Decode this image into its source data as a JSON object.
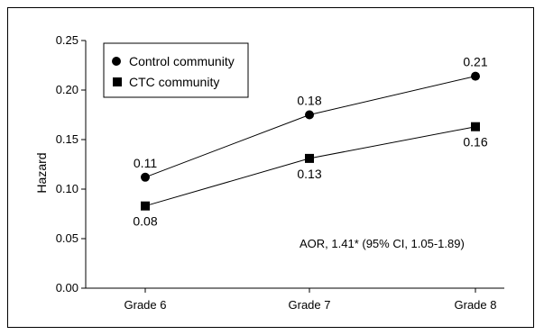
{
  "chart_data": {
    "type": "line",
    "categories": [
      "Grade 6",
      "Grade 7",
      "Grade 8"
    ],
    "series": [
      {
        "name": "Control community",
        "marker": "circle",
        "values": [
          0.112,
          0.175,
          0.214
        ],
        "labels": [
          "0.11",
          "0.18",
          "0.21"
        ]
      },
      {
        "name": "CTC community",
        "marker": "square",
        "values": [
          0.083,
          0.131,
          0.163
        ],
        "labels": [
          "0.08",
          "0.13",
          "0.16"
        ]
      }
    ],
    "ylabel": "Hazard",
    "xlabel": "",
    "ylim": [
      0.0,
      0.25
    ],
    "yticks": [
      0.0,
      0.05,
      0.1,
      0.15,
      0.2,
      0.25
    ],
    "ytick_labels": [
      "0.00",
      "0.05",
      "0.10",
      "0.15",
      "0.20",
      "0.25"
    ],
    "annotation": "AOR, 1.41* (95% CI, 1.05-1.89)",
    "legend_position": "top-left",
    "grid": false,
    "colors": {
      "series": "#000000",
      "axis": "#000000"
    }
  }
}
